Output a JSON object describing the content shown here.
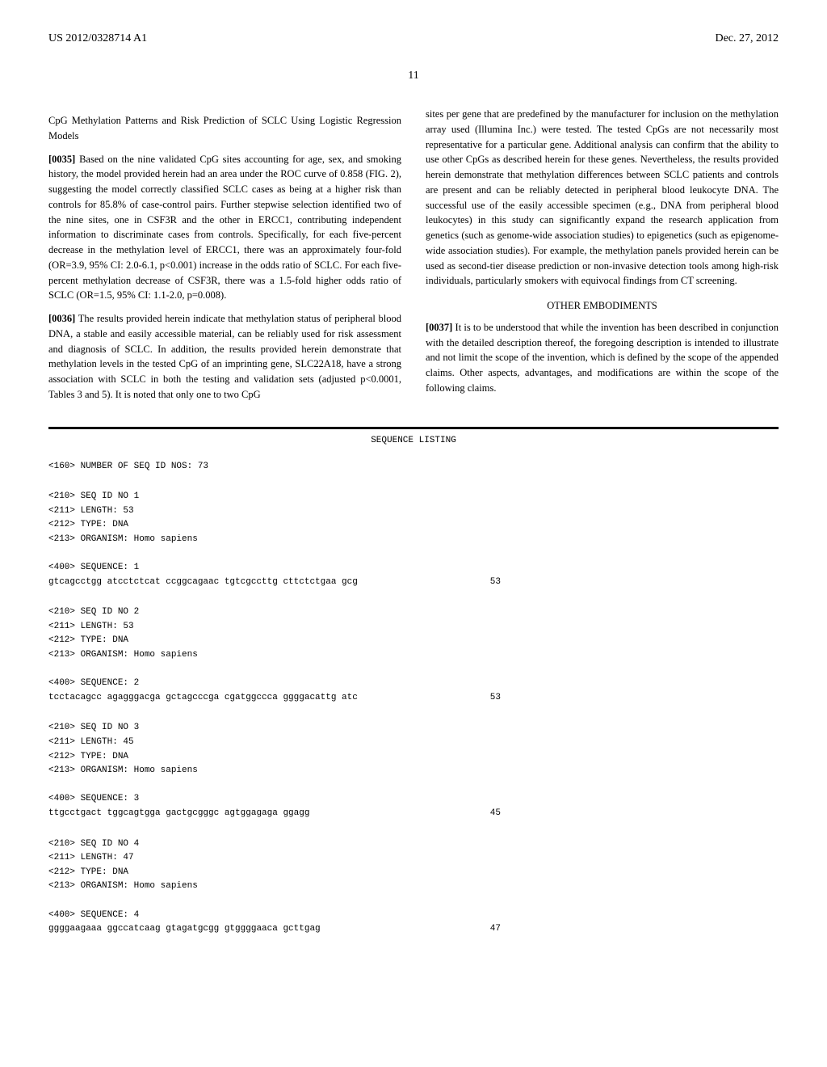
{
  "header": {
    "pub_number": "US 2012/0328714 A1",
    "pub_date": "Dec. 27, 2012",
    "page_number": "11"
  },
  "left_column": {
    "section_title": "CpG Methylation Patterns and Risk Prediction of SCLC Using Logistic Regression Models",
    "para_0035_num": "[0035]",
    "para_0035": "Based on the nine validated CpG sites accounting for age, sex, and smoking history, the model provided herein had an area under the ROC curve of 0.858 (FIG. 2), suggesting the model correctly classified SCLC cases as being at a higher risk than controls for 85.8% of case-control pairs. Further stepwise selection identified two of the nine sites, one in CSF3R and the other in ERCC1, contributing independent information to discriminate cases from controls. Specifically, for each five-percent decrease in the methylation level of ERCC1, there was an approximately four-fold (OR=3.9, 95% CI: 2.0-6.1, p<0.001) increase in the odds ratio of SCLC. For each five-percent methylation decrease of CSF3R, there was a 1.5-fold higher odds ratio of SCLC (OR=1.5, 95% CI: 1.1-2.0, p=0.008).",
    "para_0036_num": "[0036]",
    "para_0036": "The results provided herein indicate that methylation status of peripheral blood DNA, a stable and easily accessible material, can be reliably used for risk assessment and diagnosis of SCLC. In addition, the results provided herein demonstrate that methylation levels in the tested CpG of an imprinting gene, SLC22A18, have a strong association with SCLC in both the testing and validation sets (adjusted p<0.0001, Tables 3 and 5). It is noted that only one to two CpG"
  },
  "right_column": {
    "para_cont": "sites per gene that are predefined by the manufacturer for inclusion on the methylation array used (Illumina Inc.) were tested. The tested CpGs are not necessarily most representative for a particular gene. Additional analysis can confirm that the ability to use other CpGs as described herein for these genes. Nevertheless, the results provided herein demonstrate that methylation differences between SCLC patients and controls are present and can be reliably detected in peripheral blood leukocyte DNA. The successful use of the easily accessible specimen (e.g., DNA from peripheral blood leukocytes) in this study can significantly expand the research application from genetics (such as genome-wide association studies) to epigenetics (such as epigenome-wide association studies). For example, the methylation panels provided herein can be used as second-tier disease prediction or non-invasive detection tools among high-risk individuals, particularly smokers with equivocal findings from CT screening.",
    "other_embodiments_title": "OTHER EMBODIMENTS",
    "para_0037_num": "[0037]",
    "para_0037": "It is to be understood that while the invention has been described in conjunction with the detailed description thereof, the foregoing description is intended to illustrate and not limit the scope of the invention, which is defined by the scope of the appended claims. Other aspects, advantages, and modifications are within the scope of the following claims."
  },
  "sequence_listing": {
    "title": "SEQUENCE LISTING",
    "num_seq": "<160> NUMBER OF SEQ ID NOS: 73",
    "entries": [
      {
        "id": "<210> SEQ ID NO 1",
        "length": "<211> LENGTH: 53",
        "type": "<212> TYPE: DNA",
        "organism": "<213> ORGANISM: Homo sapiens",
        "seq_label": "<400> SEQUENCE: 1",
        "sequence": "gtcagcctgg atcctctcat ccggcagaac tgtcgccttg cttctctgaa gcg",
        "seq_length": "53"
      },
      {
        "id": "<210> SEQ ID NO 2",
        "length": "<211> LENGTH: 53",
        "type": "<212> TYPE: DNA",
        "organism": "<213> ORGANISM: Homo sapiens",
        "seq_label": "<400> SEQUENCE: 2",
        "sequence": "tcctacagcc agagggacga gctagcccga cgatggccca ggggacattg atc",
        "seq_length": "53"
      },
      {
        "id": "<210> SEQ ID NO 3",
        "length": "<211> LENGTH: 45",
        "type": "<212> TYPE: DNA",
        "organism": "<213> ORGANISM: Homo sapiens",
        "seq_label": "<400> SEQUENCE: 3",
        "sequence": "ttgcctgact tggcagtgga gactgcgggc agtggagaga ggagg",
        "seq_length": "45"
      },
      {
        "id": "<210> SEQ ID NO 4",
        "length": "<211> LENGTH: 47",
        "type": "<212> TYPE: DNA",
        "organism": "<213> ORGANISM: Homo sapiens",
        "seq_label": "<400> SEQUENCE: 4",
        "sequence": "ggggaagaaa ggccatcaag gtagatgcgg gtggggaaca gcttgag",
        "seq_length": "47"
      }
    ]
  }
}
